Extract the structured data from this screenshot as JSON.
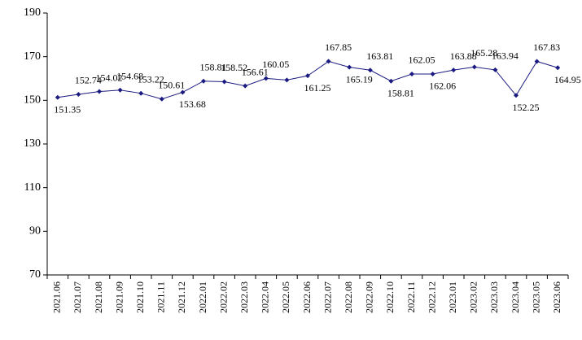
{
  "chart_data": {
    "type": "line",
    "categories": [
      "2021.06",
      "2021.07",
      "2021.08",
      "2021.09",
      "2021.10",
      "2021.11",
      "2021.12",
      "2022.01",
      "2022.02",
      "2022.03",
      "2022.04",
      "2022.05",
      "2022.06",
      "2022.07",
      "2022.08",
      "2022.09",
      "2022.10",
      "2022.11",
      "2022.12",
      "2023.01",
      "2023.02",
      "2023.03",
      "2023.04",
      "2023.05",
      "2023.06"
    ],
    "series": [
      {
        "name": null,
        "color": "#1a1a80",
        "values": [
          151.35,
          152.74,
          154.02,
          154.68,
          153.22,
          150.61,
          153.68,
          158.81,
          158.52,
          156.61,
          160.05,
          159.3,
          161.25,
          167.85,
          165.19,
          163.81,
          158.81,
          162.05,
          162.06,
          163.88,
          165.28,
          163.94,
          152.25,
          167.83,
          164.95
        ],
        "value_labels": [
          "151.35",
          "152.74",
          "154.02",
          "154.68",
          "153.22",
          "150.61",
          "153.68",
          "158.81",
          "158.52",
          "156.61",
          "160.05",
          null,
          "161.25",
          "167.85",
          "165.19",
          "163.81",
          "158.81",
          "162.05",
          "162.06",
          "163.88",
          "165.28",
          "163.94",
          "152.25",
          "167.83",
          "164.95"
        ]
      }
    ],
    "ylim": [
      70,
      190
    ],
    "yticks": [
      70,
      90,
      110,
      130,
      150,
      170,
      190
    ],
    "grid": false
  }
}
